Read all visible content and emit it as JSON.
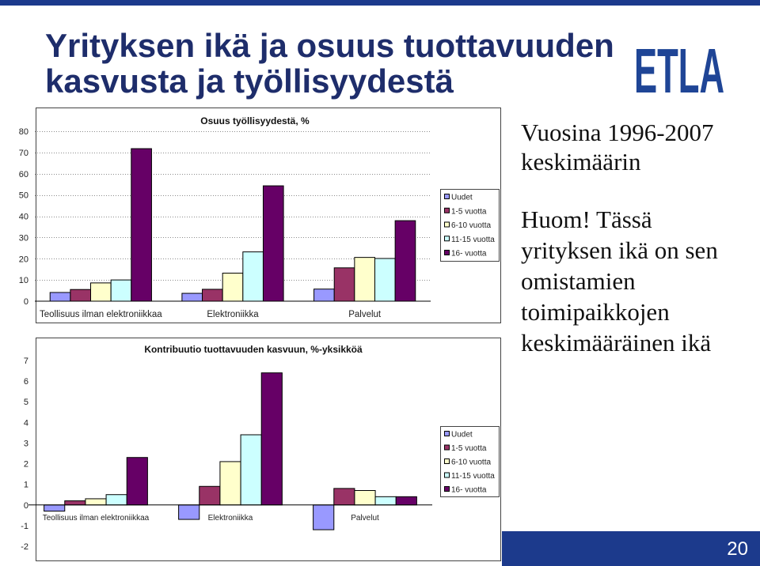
{
  "slide": {
    "title_lines": [
      "Yrityksen ikä ja osuus tuottavuuden",
      "kasvusta ja työllisyydestä"
    ],
    "logo_text": "ETLA",
    "period_lines": [
      "Vuosina 1996-2007",
      "keskimäärin"
    ],
    "note_lines": [
      "Huom! Tässä",
      "yrityksen ikä on sen",
      "omistamien",
      "toimipaikkojen",
      "keskimääräinen ikä"
    ],
    "page_number": "20"
  },
  "colors": {
    "title": "#1e2d6b",
    "brand_blue": "#1c3a8c",
    "logo": "#1f4596",
    "page_number": "#ffffff"
  },
  "chart_data": [
    {
      "type": "bar",
      "title": "Osuus työllisyydestä, %",
      "categories": [
        "Teollisuus ilman elektroniikkaa",
        "Elektroniikka",
        "Palvelut"
      ],
      "series": [
        {
          "name": "Uudet",
          "color": "#9999ff",
          "values": [
            4.1,
            3.7,
            5.7
          ]
        },
        {
          "name": "1-5 vuotta",
          "color": "#993366",
          "values": [
            5.5,
            5.6,
            15.7
          ]
        },
        {
          "name": "6-10 vuotta",
          "color": "#ffffcc",
          "values": [
            8.6,
            13.2,
            20.6
          ]
        },
        {
          "name": "11-15 vuotta",
          "color": "#ccffff",
          "values": [
            10.0,
            23.2,
            20.1
          ]
        },
        {
          "name": "16- vuotta",
          "color": "#660066",
          "values": [
            71.8,
            54.3,
            37.9
          ]
        }
      ],
      "ylim": [
        0,
        80
      ],
      "yticks": [
        0,
        10,
        20,
        30,
        40,
        50,
        60,
        70,
        80
      ],
      "grid": true,
      "legend": "right"
    },
    {
      "type": "bar",
      "title": "Kontribuutio tuottavuuden kasvuun, %-yksikköä",
      "categories": [
        "Teollisuus ilman elektroniikkaa",
        "Elektroniikka",
        "Palvelut"
      ],
      "series": [
        {
          "name": "Uudet",
          "color": "#9999ff",
          "values": [
            -0.3,
            -0.7,
            -1.2
          ]
        },
        {
          "name": "1-5 vuotta",
          "color": "#993366",
          "values": [
            0.2,
            0.9,
            0.8
          ]
        },
        {
          "name": "6-10 vuotta",
          "color": "#ffffcc",
          "values": [
            0.3,
            2.1,
            0.7
          ]
        },
        {
          "name": "11-15 vuotta",
          "color": "#ccffff",
          "values": [
            0.5,
            3.4,
            0.4
          ]
        },
        {
          "name": "16- vuotta",
          "color": "#660066",
          "values": [
            2.3,
            6.4,
            0.4
          ]
        }
      ],
      "ylim": [
        -2,
        7
      ],
      "yticks": [
        -2,
        -1,
        0,
        1,
        2,
        3,
        4,
        5,
        6,
        7
      ],
      "grid": false,
      "legend": "right"
    }
  ]
}
